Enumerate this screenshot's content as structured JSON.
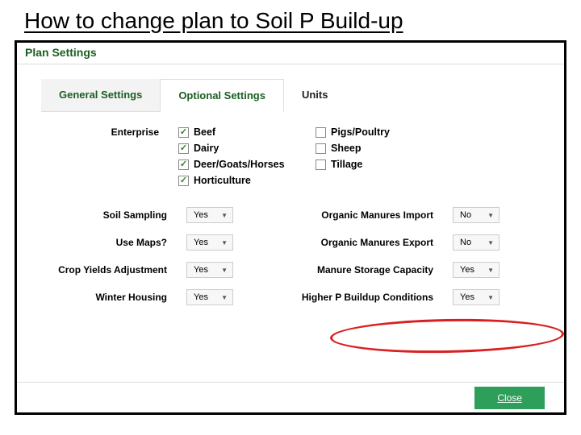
{
  "title": "How to change plan to Soil P Build-up",
  "modal_title": "Plan Settings",
  "tabs": {
    "general": "General Settings",
    "optional": "Optional Settings",
    "units": "Units"
  },
  "enterprise": {
    "label": "Enterprise",
    "col1": [
      {
        "label": "Beef",
        "checked": true
      },
      {
        "label": "Dairy",
        "checked": true
      },
      {
        "label": "Deer/Goats/Horses",
        "checked": true
      },
      {
        "label": "Horticulture",
        "checked": true
      }
    ],
    "col2": [
      {
        "label": "Pigs/Poultry",
        "checked": false
      },
      {
        "label": "Sheep",
        "checked": false
      },
      {
        "label": "Tillage",
        "checked": false
      }
    ]
  },
  "settings": {
    "rows": [
      {
        "l1": "Soil Sampling",
        "v1": "Yes",
        "l2": "Organic Manures Import",
        "v2": "No"
      },
      {
        "l1": "Use Maps?",
        "v1": "Yes",
        "l2": "Organic Manures Export",
        "v2": "No"
      },
      {
        "l1": "Crop Yields Adjustment",
        "v1": "Yes",
        "l2": "Manure Storage Capacity",
        "v2": "Yes"
      },
      {
        "l1": "Winter Housing",
        "v1": "Yes",
        "l2": "Higher P Buildup Conditions",
        "v2": "Yes"
      }
    ]
  },
  "close": "Close",
  "colors": {
    "accent": "#2e9e5b",
    "heading": "#1b5e20",
    "highlight": "#d92020"
  }
}
